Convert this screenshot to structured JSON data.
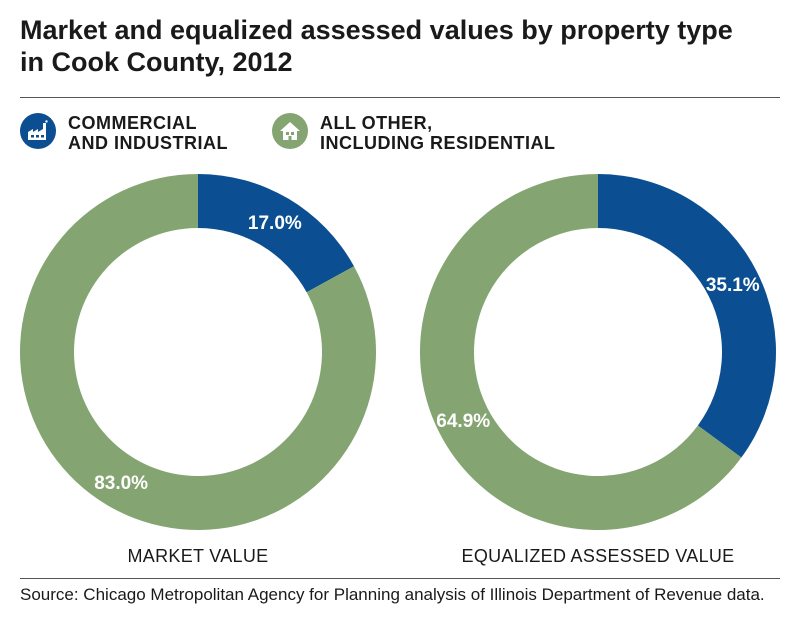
{
  "title": {
    "line1": "Market and equalized assessed values by property type",
    "line2": "in Cook County, 2012"
  },
  "legend": [
    {
      "name": "legend-commercial",
      "icon": "factory-icon",
      "line1": "COMMERCIAL",
      "line2": "AND INDUSTRIAL",
      "color": "#0b4f92"
    },
    {
      "name": "legend-other",
      "icon": "house-icon",
      "line1": "ALL OTHER,",
      "line2": "INCLUDING RESIDENTIAL",
      "color": "#84a571"
    }
  ],
  "colors": {
    "commercial": "#0b4f92",
    "other": "#84a571",
    "text": "#1a1a1a"
  },
  "chart_data": [
    {
      "type": "pie",
      "donut": true,
      "title": "MARKET VALUE",
      "categories": [
        "Commercial and industrial",
        "All other, including residential"
      ],
      "values": [
        17.0,
        83.0
      ],
      "labels": [
        "17.0%",
        "83.0%"
      ],
      "colors": [
        "#0b4f92",
        "#84a571"
      ]
    },
    {
      "type": "pie",
      "donut": true,
      "title": "EQUALIZED ASSESSED VALUE",
      "categories": [
        "Commercial and industrial",
        "All other, including residential"
      ],
      "values": [
        35.1,
        64.9
      ],
      "labels": [
        "35.1%",
        "64.9%"
      ],
      "colors": [
        "#0b4f92",
        "#84a571"
      ]
    }
  ],
  "source": "Source: Chicago Metropolitan Agency for Planning analysis of Illinois Department of Revenue data."
}
